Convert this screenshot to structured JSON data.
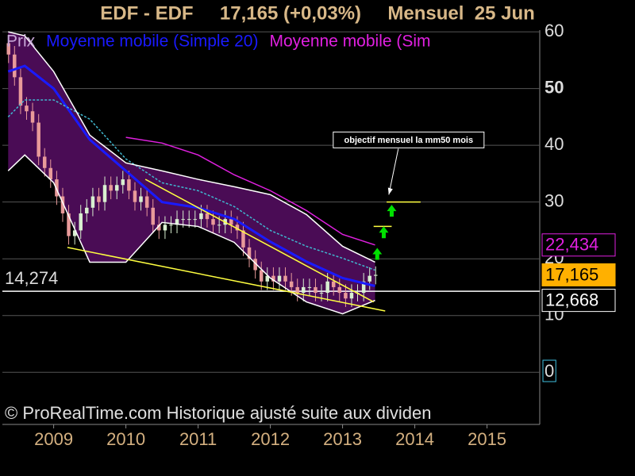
{
  "chart_data": {
    "type": "candlestick",
    "title": "EDF - EDF     17,165 (+0,03%)     Mensuel  25 Jun",
    "footer": "© ProRealTime.com Historique ajusté suite aux dividen",
    "xlim": [
      2008.29,
      2015.73
    ],
    "xticks": [
      2009,
      2010,
      2011,
      2012,
      2013,
      2014,
      2015
    ],
    "ylim": [
      -9.2,
      60.3
    ],
    "yticks": [
      0,
      10,
      20,
      30,
      40,
      50,
      60
    ],
    "grid": true,
    "candles": {
      "name": "Prix",
      "color_up": "#d8f0d0",
      "color_down": "#e89a9a",
      "x": [
        2008.375,
        2008.458,
        2008.542,
        2008.625,
        2008.708,
        2008.792,
        2008.875,
        2008.958,
        2009.042,
        2009.125,
        2009.208,
        2009.292,
        2009.375,
        2009.458,
        2009.542,
        2009.625,
        2009.708,
        2009.792,
        2009.875,
        2009.958,
        2010.042,
        2010.125,
        2010.208,
        2010.292,
        2010.375,
        2010.458,
        2010.542,
        2010.625,
        2010.708,
        2010.792,
        2010.875,
        2010.958,
        2011.042,
        2011.125,
        2011.208,
        2011.292,
        2011.375,
        2011.458,
        2011.542,
        2011.625,
        2011.708,
        2011.792,
        2011.875,
        2011.958,
        2012.042,
        2012.125,
        2012.208,
        2012.292,
        2012.375,
        2012.458,
        2012.542,
        2012.625,
        2012.708,
        2012.792,
        2012.875,
        2012.958,
        2013.042,
        2013.125,
        2013.208,
        2013.292,
        2013.375,
        2013.458
      ],
      "open": [
        58,
        56,
        52,
        47,
        46,
        44,
        38,
        36,
        34,
        31,
        28,
        24,
        25,
        28,
        29,
        31,
        30,
        33,
        32,
        33,
        34,
        32,
        30,
        31,
        29,
        26,
        25,
        26,
        26,
        27,
        27,
        27,
        27,
        28,
        27,
        26,
        26,
        27,
        26,
        25,
        22,
        20,
        18,
        16,
        17,
        16,
        17,
        16,
        15,
        14,
        15,
        15,
        14,
        14,
        16,
        15,
        14,
        13,
        14,
        14,
        16,
        17
      ],
      "high": [
        59.5,
        57.5,
        53.5,
        48.5,
        47.5,
        45.5,
        39.5,
        37.5,
        35.5,
        32.5,
        29.5,
        26.5,
        29.5,
        30.5,
        32.5,
        32.5,
        34.5,
        34.5,
        34.5,
        35.5,
        35.5,
        33.5,
        32.5,
        32.5,
        30.5,
        27.5,
        27.5,
        27.5,
        28.5,
        28.5,
        28.5,
        28.5,
        29.5,
        29.5,
        28.5,
        27.5,
        28.5,
        28.5,
        27.5,
        26.5,
        23.5,
        21.5,
        19.5,
        18.5,
        18.5,
        18.5,
        18.5,
        17.5,
        16.5,
        16.5,
        16.5,
        16.5,
        15.5,
        17.5,
        17.5,
        16.5,
        15.5,
        15.5,
        15.5,
        17.5,
        18.5,
        18.665
      ],
      "low": [
        54.5,
        50.5,
        45.5,
        44.5,
        42.5,
        36.5,
        34.5,
        32.5,
        29.5,
        26.5,
        22.5,
        22.5,
        23.5,
        26.5,
        27.5,
        28.5,
        28.5,
        30.5,
        30.5,
        31.5,
        30.5,
        28.5,
        28.5,
        27.5,
        24.5,
        23.5,
        23.5,
        24.5,
        24.5,
        25.5,
        25.5,
        25.5,
        25.5,
        25.5,
        24.5,
        24.5,
        24.5,
        24.5,
        23.5,
        20.5,
        18.5,
        16.5,
        14.5,
        14.5,
        14.5,
        14.5,
        14.5,
        13.5,
        12.5,
        12.5,
        13.5,
        12.5,
        12.5,
        12.5,
        13.5,
        12.5,
        11.5,
        11.5,
        12.5,
        12.5,
        14.5,
        15.5
      ],
      "close": [
        56,
        52,
        47,
        46,
        44,
        38,
        36,
        34,
        31,
        28,
        24,
        25,
        28,
        29,
        31,
        30,
        33,
        32,
        33,
        34,
        32,
        30,
        31,
        29,
        26,
        25,
        26,
        26,
        27,
        27,
        27,
        27,
        28,
        27,
        26,
        26,
        27,
        26,
        25,
        22,
        20,
        18,
        16,
        17,
        16,
        17,
        16,
        15,
        14,
        15,
        15,
        14,
        14,
        16,
        15,
        14,
        13,
        14,
        14,
        16,
        17,
        17.165
      ]
    },
    "band_fill": "#4a0c55",
    "series": [
      {
        "name": "Moyenne mobile (Simple 20)",
        "color": "#1a1aff",
        "x": [
          2008.37,
          2008.6,
          2009.0,
          2009.5,
          2010.0,
          2010.5,
          2011.0,
          2011.5,
          2012.0,
          2012.5,
          2013.0,
          2013.45
        ],
        "values": [
          53,
          54,
          50,
          41,
          35.5,
          30,
          29,
          27,
          23,
          19.5,
          16.6,
          15.2
        ]
      },
      {
        "name": "Moyenne mobile (Sim",
        "color": "#e020e0",
        "x": [
          2010.0,
          2010.5,
          2011.0,
          2011.5,
          2012.0,
          2012.5,
          2013.0,
          2013.45
        ],
        "values": [
          41.4,
          40.4,
          38.3,
          34.8,
          32,
          28.5,
          24.3,
          22.434
        ]
      },
      {
        "color": "#40b8d0",
        "dash": true,
        "x": [
          2008.37,
          2008.6,
          2009.0,
          2009.5,
          2010.0,
          2010.5,
          2011.0,
          2011.5,
          2012.0,
          2012.5,
          2013.0,
          2013.45
        ],
        "values": [
          45,
          48,
          48,
          44.6,
          37.6,
          33.4,
          32,
          29.2,
          25,
          22.2,
          20.1,
          18
        ]
      },
      {
        "color": "#ffffff",
        "band": "upper",
        "x": [
          2008.37,
          2008.6,
          2009.0,
          2009.5,
          2010.0,
          2010.5,
          2011.0,
          2011.5,
          2012.0,
          2012.5,
          2013.0,
          2013.45
        ],
        "values": [
          60,
          59.3,
          53,
          41.8,
          36.9,
          35.5,
          34,
          32.7,
          31.3,
          27.8,
          22.2,
          19.4
        ]
      },
      {
        "color": "#ffffff",
        "band": "lower",
        "x": [
          2008.37,
          2008.6,
          2009.0,
          2009.5,
          2010.0,
          2010.5,
          2011.0,
          2011.5,
          2012.0,
          2012.5,
          2013.0,
          2013.45
        ],
        "values": [
          35.5,
          38.3,
          33.4,
          19.4,
          19.4,
          26.4,
          25.7,
          22.9,
          16.6,
          12.4,
          10.3,
          12.668
        ]
      }
    ],
    "trend_color": "#ffff40",
    "trendlines": [
      {
        "x": [
          2009.19,
          2013.59
        ],
        "values": [
          22,
          10.8
        ]
      },
      {
        "x": [
          2010.27,
          2013.43
        ],
        "values": [
          34,
          12.4
        ]
      },
      {
        "x": [
          2013.61,
          2014.08
        ],
        "values": [
          30,
          30
        ]
      },
      {
        "x": [
          2013.43,
          2013.68
        ],
        "values": [
          25.7,
          25.7
        ]
      }
    ],
    "arrow_color": "#00e000",
    "arrows": [
      {
        "x": 2013.48,
        "y": 20.8
      },
      {
        "x": 2013.57,
        "y": 24.6
      },
      {
        "x": 2013.68,
        "y": 28.4
      }
    ],
    "annotation": {
      "text": "objectif mensuel la mm50 mois",
      "x": 2013.64,
      "y": 31.3
    },
    "level": {
      "value": 14.274,
      "label": "14,274"
    },
    "price_labels": [
      {
        "value": 22.434,
        "label": "22,434",
        "color": "#e020e0",
        "background": "#000000"
      },
      {
        "value": 17.165,
        "label": "17,165",
        "color": "#000000",
        "background": "#ffb000"
      },
      {
        "value": 12.668,
        "label": "12,668",
        "color": "#ffffff",
        "background": "#000000"
      }
    ]
  }
}
